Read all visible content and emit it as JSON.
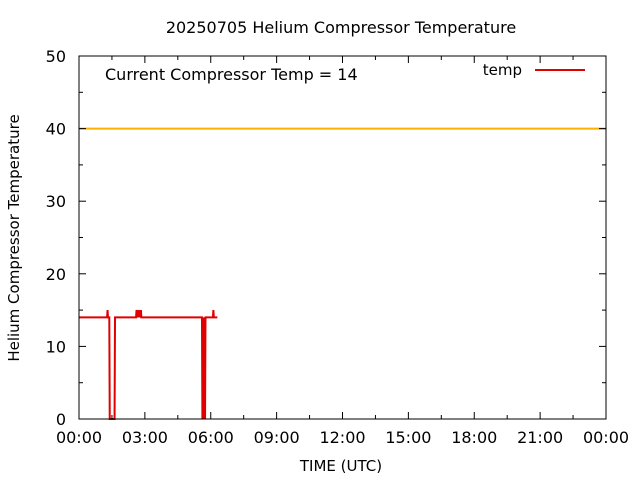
{
  "chart_data": {
    "type": "line",
    "title": "20250705 Helium Compressor Temperature",
    "xlabel": "TIME (UTC)",
    "ylabel": "Helium Compressor Temperature",
    "annotation": "Current Compressor Temp = 14",
    "x_unit": "hours UTC",
    "xlim": [
      0,
      24
    ],
    "ylim": [
      0,
      50
    ],
    "x_ticks": [
      0,
      3,
      6,
      9,
      12,
      15,
      18,
      21,
      24
    ],
    "x_tick_labels": [
      "00:00",
      "03:00",
      "06:00",
      "09:00",
      "12:00",
      "15:00",
      "18:00",
      "21:00",
      "00:00"
    ],
    "y_ticks": [
      0,
      10,
      20,
      30,
      40,
      50
    ],
    "y_tick_labels": [
      "0",
      "10",
      "20",
      "30",
      "40",
      "50"
    ],
    "grid": false,
    "legend_position": "top-right",
    "threshold": {
      "value": 40,
      "color": "#ffb000"
    },
    "series": [
      {
        "name": "temp",
        "color": "#e00000",
        "points": [
          [
            0.0,
            14
          ],
          [
            1.28,
            14
          ],
          [
            1.3,
            15
          ],
          [
            1.32,
            14
          ],
          [
            1.38,
            14
          ],
          [
            1.4,
            0
          ],
          [
            1.62,
            0
          ],
          [
            1.64,
            14
          ],
          [
            2.6,
            14
          ],
          [
            2.62,
            15
          ],
          [
            2.7,
            14
          ],
          [
            2.72,
            15
          ],
          [
            2.8,
            14
          ],
          [
            2.82,
            15
          ],
          [
            2.84,
            14
          ],
          [
            5.6,
            14
          ],
          [
            5.62,
            0
          ],
          [
            5.64,
            14
          ],
          [
            5.66,
            0
          ],
          [
            5.68,
            14
          ],
          [
            5.7,
            0
          ],
          [
            5.72,
            14
          ],
          [
            5.74,
            0
          ],
          [
            5.76,
            14
          ],
          [
            6.1,
            14
          ],
          [
            6.12,
            15
          ],
          [
            6.14,
            14
          ],
          [
            6.3,
            14
          ]
        ]
      }
    ]
  }
}
